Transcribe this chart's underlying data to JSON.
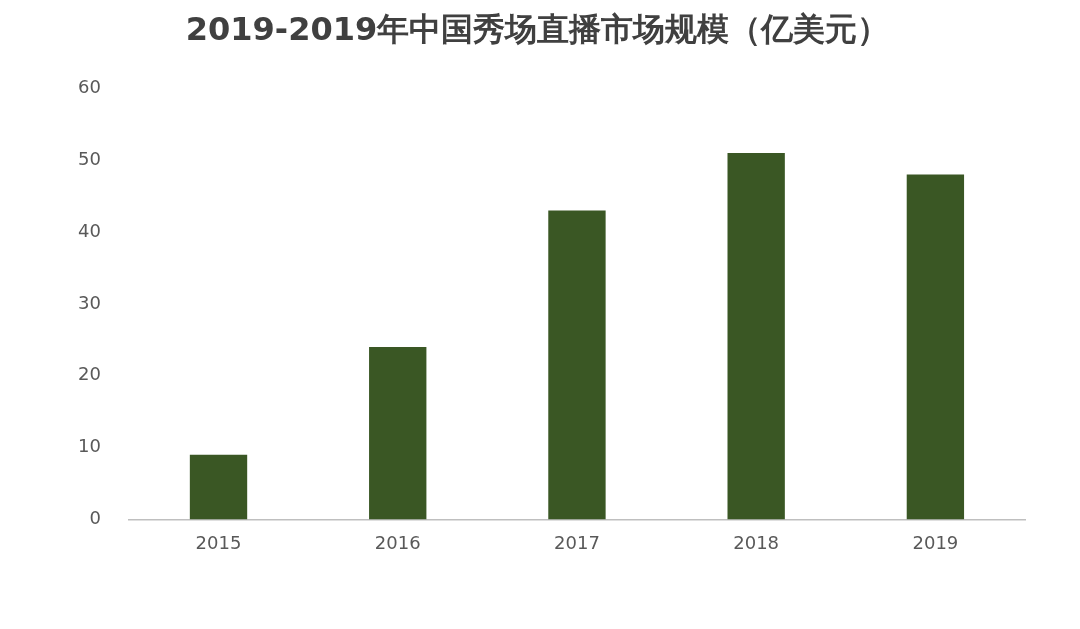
{
  "chart_data": {
    "type": "bar",
    "title": "2019-2019年中国秀场直播市场规模（亿美元）",
    "categories": [
      "2015",
      "2016",
      "2017",
      "2018",
      "2019"
    ],
    "values": [
      9,
      24,
      43,
      51,
      48
    ],
    "color": "#3a5724",
    "ylim": [
      0,
      60
    ],
    "yticks": [
      0,
      10,
      20,
      30,
      40,
      50,
      60
    ],
    "grid": false,
    "legend": false
  }
}
